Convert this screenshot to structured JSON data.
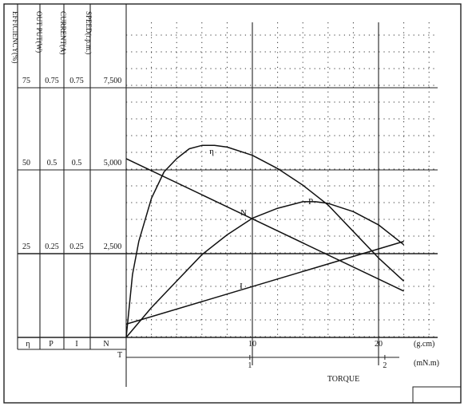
{
  "chart_data": {
    "type": "line",
    "column_headers": [
      "EFFICIENCY(%)",
      "OUT PUT(W)",
      "CURRENT(A)",
      "SPEED(r.p.m.)"
    ],
    "column_symbols": [
      "η",
      "P",
      "I",
      "N"
    ],
    "scale_rows": [
      {
        "efficiency": "75",
        "output": "0.75",
        "current": "0.75",
        "speed": "7,500"
      },
      {
        "efficiency": "50",
        "output": "0.5",
        "current": "0.5",
        "speed": "5,000"
      },
      {
        "efficiency": "25",
        "output": "0.25",
        "current": "0.25",
        "speed": "2,500"
      }
    ],
    "origin_label": "T",
    "x_axis": {
      "label": "TORQUE",
      "unit_top": "(g.cm)",
      "unit_bottom": "(mN.m)",
      "ticks_top": [
        "10",
        "20"
      ],
      "ticks_bottom": [
        "1",
        "2"
      ],
      "range_gcm": [
        0,
        25
      ]
    },
    "y_range_normalized": [
      0,
      1
    ],
    "series": [
      {
        "name": "η",
        "x": [
          0,
          0.5,
          1,
          2,
          3,
          4,
          5,
          6,
          7,
          8,
          10,
          12,
          14,
          16,
          18,
          20,
          22
        ],
        "y": [
          0,
          0.19,
          0.29,
          0.42,
          0.5,
          0.54,
          0.57,
          0.58,
          0.58,
          0.575,
          0.55,
          0.51,
          0.46,
          0.4,
          0.32,
          0.24,
          0.17
        ]
      },
      {
        "name": "N",
        "x": [
          0,
          22
        ],
        "y": [
          0.54,
          0.14
        ]
      },
      {
        "name": "P",
        "x": [
          0,
          2,
          4,
          6,
          8,
          10,
          12,
          14,
          15,
          16,
          18,
          20,
          22
        ],
        "y": [
          0,
          0.09,
          0.17,
          0.25,
          0.31,
          0.36,
          0.39,
          0.41,
          0.41,
          0.405,
          0.38,
          0.34,
          0.28
        ]
      },
      {
        "name": "I",
        "x": [
          0,
          22
        ],
        "y": [
          0.04,
          0.29
        ]
      }
    ]
  }
}
